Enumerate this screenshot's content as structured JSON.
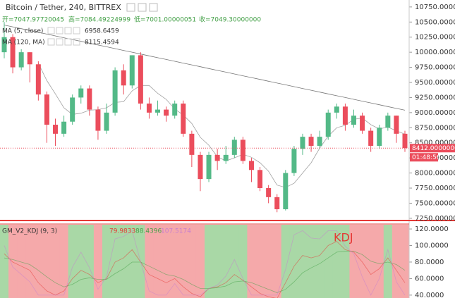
{
  "chart_data": [
    {
      "type": "candlestick",
      "title": "Bitcoin / Tether, 240, BITTREX",
      "ohlc_legend": [
        "开=7047.97720045",
        "高=7084.49224999",
        "低=7001.00000051",
        "收=7049.30000000"
      ],
      "open": [
        10000,
        10250,
        9750,
        10000,
        9800,
        9300,
        8800,
        8650,
        8850,
        9250,
        9400,
        9050,
        8700,
        9000,
        9700,
        9450,
        9950,
        9150,
        9000,
        9050,
        8950,
        9150,
        8650,
        8300,
        7900,
        8300,
        8200,
        8300,
        8550,
        8200,
        8050,
        7750,
        7600,
        7400,
        8000,
        8400,
        8600,
        8450,
        8600,
        9000,
        9100,
        8800,
        8950,
        8700,
        8450,
        8750,
        8950,
        8650
      ],
      "high": [
        10500,
        10300,
        10050,
        10000,
        9850,
        9350,
        8900,
        8950,
        9300,
        9450,
        9450,
        9100,
        9150,
        9750,
        9800,
        9950,
        10000,
        9250,
        9200,
        9100,
        9200,
        9200,
        8700,
        8350,
        8350,
        8400,
        8450,
        8600,
        8600,
        8250,
        8100,
        7800,
        7650,
        8050,
        8450,
        8650,
        8650,
        8700,
        9050,
        9150,
        9150,
        9050,
        9000,
        8750,
        8800,
        9000,
        8950,
        8700
      ],
      "low": [
        9900,
        9650,
        9700,
        9500,
        9200,
        8500,
        8450,
        8600,
        8800,
        9150,
        8950,
        8550,
        8650,
        8950,
        9300,
        9400,
        9050,
        8900,
        8950,
        8850,
        8900,
        8600,
        8100,
        7700,
        7850,
        8050,
        8150,
        8250,
        8150,
        7850,
        7700,
        7500,
        7350,
        7380,
        7950,
        8300,
        8350,
        8400,
        8550,
        8900,
        8700,
        8750,
        8650,
        8350,
        8400,
        8700,
        8500,
        8350
      ],
      "close": [
        10250,
        9750,
        10000,
        9800,
        9300,
        8800,
        8650,
        8850,
        9250,
        9400,
        9050,
        8700,
        9000,
        9700,
        9450,
        9950,
        9150,
        9000,
        9050,
        8950,
        9150,
        8650,
        8300,
        7900,
        8300,
        8200,
        8300,
        8550,
        8200,
        8050,
        7750,
        7600,
        7400,
        8000,
        8400,
        8600,
        8450,
        8600,
        9000,
        9100,
        8800,
        8950,
        8700,
        8450,
        8750,
        8950,
        8650,
        8412
      ],
      "up_color": "#53b987",
      "down_color": "#eb4d5c",
      "indicators": [
        {
          "name": "MA (5, close)",
          "value_label": "6958.6459",
          "color": "#8a8a8a",
          "values": [
            null,
            null,
            null,
            null,
            9820,
            9530,
            9310,
            9080,
            8970,
            8990,
            9040,
            9050,
            9080,
            9170,
            9180,
            9360,
            9450,
            9450,
            9320,
            9220,
            9060,
            8960,
            8820,
            8590,
            8460,
            8270,
            8200,
            8250,
            8310,
            8260,
            8170,
            8030,
            7800,
            7760,
            7830,
            8000,
            8170,
            8410,
            8610,
            8750,
            8790,
            8890,
            8910,
            8800,
            8730,
            8760,
            8700,
            8642
          ]
        },
        {
          "name": "MA (120, MA)",
          "value_label": "8115.4594",
          "color": "#555555",
          "values": [
            10450,
            10420,
            10390,
            10360,
            10330,
            10300,
            10270,
            10240,
            10210,
            10180,
            10150,
            10120,
            10090,
            10060,
            10030,
            10000,
            9970,
            9940,
            9910,
            9880,
            9850,
            9820,
            9790,
            9760,
            9730,
            9700,
            9670,
            9640,
            9610,
            9580,
            9550,
            9520,
            9490,
            9460,
            9430,
            9400,
            9370,
            9340,
            9310,
            9280,
            9250,
            9220,
            9190,
            9160,
            9130,
            9100,
            9070,
            9040
          ]
        }
      ],
      "last_price_label": "8412.00000000",
      "countdown": "01:48:56",
      "ylim": [
        7225,
        10865
      ],
      "yticks": [
        {
          "value": 10750,
          "label": "10750.00000000"
        },
        {
          "value": 10500,
          "label": "10500.00000000"
        },
        {
          "value": 10250,
          "label": "10250.00000000"
        },
        {
          "value": 10000,
          "label": "10000.00000000"
        },
        {
          "value": 9750,
          "label": "9750.00000000"
        },
        {
          "value": 9500,
          "label": "9500.00000000"
        },
        {
          "value": 9250,
          "label": "9250.00000000"
        },
        {
          "value": 9000,
          "label": "9000.00000000"
        },
        {
          "value": 8750,
          "label": "8750.00000000"
        },
        {
          "value": 8500,
          "label": "8500.00000000"
        },
        {
          "value": 8250,
          "label": "8250.00000000"
        },
        {
          "value": 8000,
          "label": "8000.00000000"
        },
        {
          "value": 7750,
          "label": "7750.00000000"
        },
        {
          "value": 7500,
          "label": "7500.00000000"
        },
        {
          "value": 7250,
          "label": "7250.00000000"
        }
      ]
    },
    {
      "type": "kdj",
      "title": "GM_V2_KDJ (9, 3)",
      "annotation": "KDJ",
      "up_band_color": "#a9d8a6",
      "down_band_color": "#f5a9aa",
      "series": [
        {
          "name": "K",
          "color": "#e53935",
          "value_label": "79.9833",
          "values": [
            90,
            80,
            75,
            70,
            55,
            45,
            40,
            45,
            60,
            70,
            65,
            55,
            60,
            80,
            85,
            95,
            80,
            65,
            60,
            55,
            60,
            50,
            42,
            38,
            48,
            50,
            55,
            65,
            58,
            50,
            42,
            38,
            36,
            55,
            75,
            88,
            85,
            88,
            100,
            105,
            95,
            92,
            80,
            65,
            72,
            85,
            70,
            55
          ]
        },
        {
          "name": "D",
          "color": "#43a047",
          "value_label": "88.4396",
          "values": [
            85,
            83,
            80,
            77,
            70,
            62,
            55,
            50,
            53,
            59,
            61,
            59,
            59,
            66,
            72,
            80,
            80,
            75,
            70,
            65,
            63,
            59,
            53,
            48,
            48,
            49,
            51,
            56,
            57,
            55,
            51,
            47,
            43,
            47,
            56,
            67,
            73,
            78,
            85,
            92,
            93,
            93,
            89,
            81,
            78,
            80,
            77,
            70
          ]
        },
        {
          "name": "J",
          "color": "#c77fd0",
          "value_label": "107.5174",
          "values": [
            100,
            74,
            65,
            56,
            40,
            40,
            40,
            40,
            74,
            92,
            73,
            47,
            62,
            108,
            111,
            118,
            80,
            45,
            40,
            40,
            54,
            40,
            40,
            40,
            48,
            52,
            63,
            83,
            60,
            40,
            40,
            40,
            40,
            71,
            113,
            118,
            109,
            108,
            118,
            118,
            99,
            90,
            62,
            40,
            60,
            95,
            56,
            40
          ]
        }
      ],
      "ylim": [
        36.5,
        126
      ],
      "yticks": [
        {
          "value": 120,
          "label": "120.0000"
        },
        {
          "value": 100,
          "label": "100.0000"
        },
        {
          "value": 80,
          "label": "80.0000"
        },
        {
          "value": 60,
          "label": "60.0000"
        },
        {
          "value": 40,
          "label": "40.0000"
        }
      ]
    }
  ]
}
